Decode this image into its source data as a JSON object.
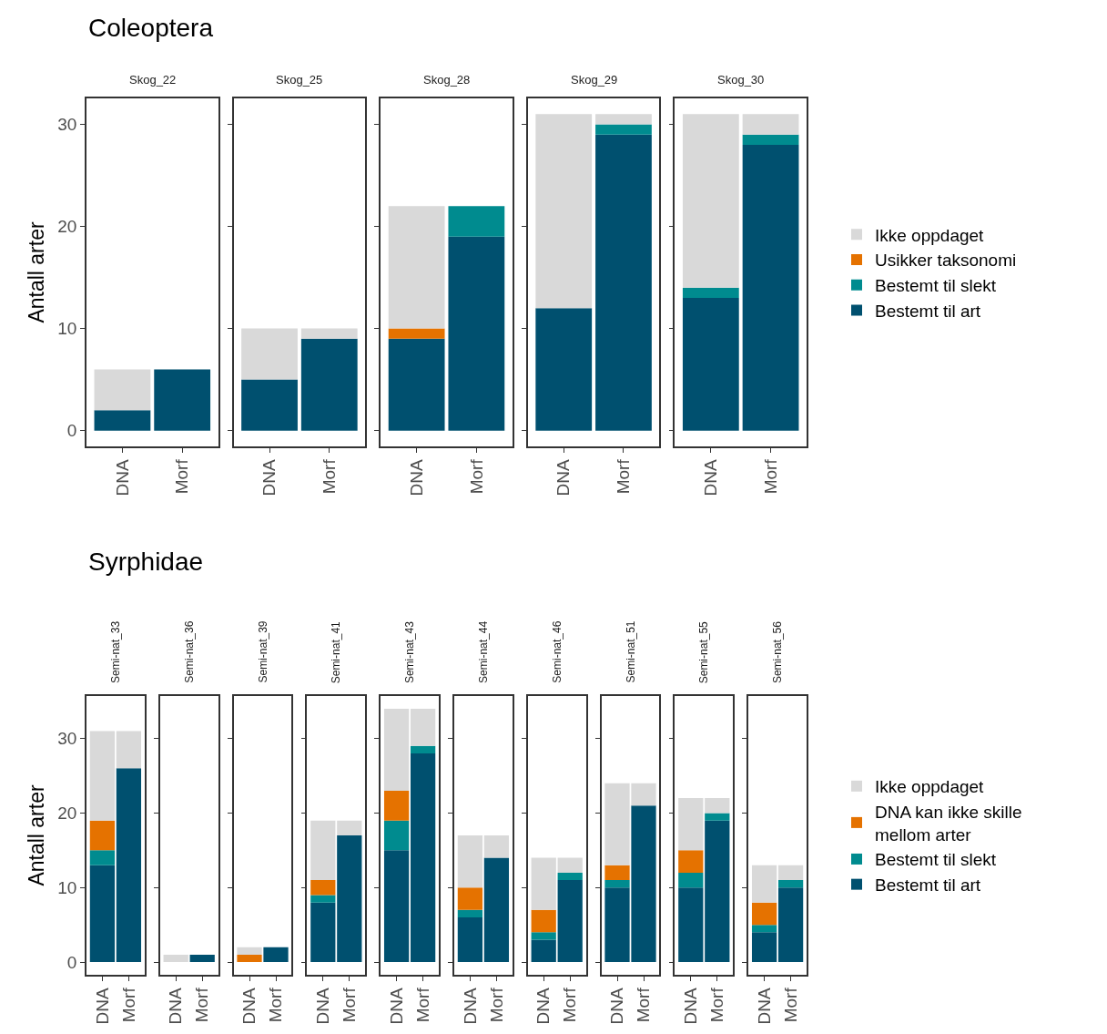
{
  "chart_data": [
    {
      "type": "bar",
      "title": "Coleoptera",
      "subtitle": "Skog_22",
      "ylabel": "Antall arter",
      "categories": [
        "DNA",
        "Morf"
      ],
      "stacked": true,
      "ylim": [
        -1.55,
        32.55
      ],
      "yticks": [
        0,
        10,
        20,
        30
      ],
      "legend": "right",
      "series": [
        {
          "name": "Bestemt til art",
          "color": "#00506f",
          "values": [
            2,
            6
          ]
        },
        {
          "name": "Bestemt til slekt",
          "color": "#008b8f",
          "values": [
            0,
            0
          ]
        },
        {
          "name": "Usikker taksonomi",
          "color": "#e57200",
          "values": [
            0,
            0
          ]
        },
        {
          "name": "Ikke oppdaget",
          "color": "#d9d9d9",
          "values": [
            4,
            0
          ]
        }
      ]
    },
    {
      "type": "bar",
      "subtitle": "Skog_25",
      "categories": [
        "DNA",
        "Morf"
      ],
      "stacked": true,
      "ylim": [
        -1.55,
        32.55
      ],
      "yticks": [
        0,
        10,
        20,
        30
      ],
      "tick_labels": "x",
      "series": [
        {
          "color": "#00506f",
          "values": [
            5,
            9
          ]
        },
        {
          "color": "#008b8f",
          "values": [
            0,
            0
          ]
        },
        {
          "color": "#e57200",
          "values": [
            0,
            0
          ]
        },
        {
          "color": "#d9d9d9",
          "values": [
            5,
            1
          ]
        }
      ]
    },
    {
      "type": "bar",
      "subtitle": "Skog_28",
      "categories": [
        "DNA",
        "Morf"
      ],
      "stacked": true,
      "ylim": [
        -1.55,
        32.55
      ],
      "yticks": [
        0,
        10,
        20,
        30
      ],
      "tick_labels": "x",
      "series": [
        {
          "color": "#00506f",
          "values": [
            9,
            19
          ]
        },
        {
          "color": "#008b8f",
          "values": [
            0,
            3
          ]
        },
        {
          "color": "#e57200",
          "values": [
            1,
            0
          ]
        },
        {
          "color": "#d9d9d9",
          "values": [
            12,
            0
          ]
        }
      ]
    },
    {
      "type": "bar",
      "subtitle": "Skog_29",
      "categories": [
        "DNA",
        "Morf"
      ],
      "stacked": true,
      "ylim": [
        -1.55,
        32.55
      ],
      "yticks": [
        0,
        10,
        20,
        30
      ],
      "tick_labels": "x",
      "series": [
        {
          "color": "#00506f",
          "values": [
            12,
            29
          ]
        },
        {
          "color": "#008b8f",
          "values": [
            0,
            1
          ]
        },
        {
          "color": "#e57200",
          "values": [
            0,
            0
          ]
        },
        {
          "color": "#d9d9d9",
          "values": [
            19,
            1
          ]
        }
      ]
    },
    {
      "type": "bar",
      "subtitle": "Skog_30",
      "categories": [
        "DNA",
        "Morf"
      ],
      "stacked": true,
      "ylim": [
        -1.55,
        32.55
      ],
      "yticks": [
        0,
        10,
        20,
        30
      ],
      "tick_labels": "x",
      "series": [
        {
          "color": "#00506f",
          "values": [
            13,
            28
          ]
        },
        {
          "color": "#008b8f",
          "values": [
            1,
            1
          ]
        },
        {
          "color": "#e57200",
          "values": [
            0,
            0
          ]
        },
        {
          "color": "#d9d9d9",
          "values": [
            17,
            2
          ]
        }
      ]
    },
    {
      "type": "bar",
      "title": "Syrphidae",
      "subtitle": "Semi-nat_33",
      "ylabel": "Antall arter",
      "categories": [
        "DNA",
        "Morf"
      ],
      "stacked": true,
      "ylim": [
        -1.7,
        35.7
      ],
      "yticks": [
        0,
        10,
        20,
        30
      ],
      "legend": "right",
      "series": [
        {
          "name": "Bestemt til art",
          "color": "#00506f",
          "values": [
            13,
            26
          ]
        },
        {
          "name": "Bestemt til slekt",
          "color": "#008b8f",
          "values": [
            2,
            0
          ]
        },
        {
          "name": "DNA kan ikke skille mellom arter",
          "color": "#e57200",
          "values": [
            4,
            0
          ]
        },
        {
          "name": "Ikke oppdaget",
          "color": "#d9d9d9",
          "values": [
            12,
            5
          ]
        }
      ]
    },
    {
      "type": "bar",
      "subtitle": "Semi-nat_36",
      "categories": [
        "DNA",
        "Morf"
      ],
      "stacked": true,
      "ylim": [
        -1.7,
        35.7
      ],
      "yticks": [
        0,
        10,
        20,
        30
      ],
      "tick_labels": "x",
      "series": [
        {
          "color": "#00506f",
          "values": [
            0,
            1
          ]
        },
        {
          "color": "#008b8f",
          "values": [
            0,
            0
          ]
        },
        {
          "color": "#e57200",
          "values": [
            0,
            0
          ]
        },
        {
          "color": "#d9d9d9",
          "values": [
            1,
            0
          ]
        }
      ]
    },
    {
      "type": "bar",
      "subtitle": "Semi-nat_39",
      "categories": [
        "DNA",
        "Morf"
      ],
      "stacked": true,
      "ylim": [
        -1.7,
        35.7
      ],
      "yticks": [
        0,
        10,
        20,
        30
      ],
      "tick_labels": "x",
      "series": [
        {
          "color": "#00506f",
          "values": [
            0,
            2
          ]
        },
        {
          "color": "#008b8f",
          "values": [
            0,
            0
          ]
        },
        {
          "color": "#e57200",
          "values": [
            1,
            0
          ]
        },
        {
          "color": "#d9d9d9",
          "values": [
            1,
            0
          ]
        }
      ]
    },
    {
      "type": "bar",
      "subtitle": "Semi-nat_41",
      "categories": [
        "DNA",
        "Morf"
      ],
      "stacked": true,
      "ylim": [
        -1.7,
        35.7
      ],
      "yticks": [
        0,
        10,
        20,
        30
      ],
      "tick_labels": "x",
      "series": [
        {
          "color": "#00506f",
          "values": [
            8,
            17
          ]
        },
        {
          "color": "#008b8f",
          "values": [
            1,
            0
          ]
        },
        {
          "color": "#e57200",
          "values": [
            2,
            0
          ]
        },
        {
          "color": "#d9d9d9",
          "values": [
            8,
            2
          ]
        }
      ]
    },
    {
      "type": "bar",
      "subtitle": "Semi-nat_43",
      "categories": [
        "DNA",
        "Morf"
      ],
      "stacked": true,
      "ylim": [
        -1.7,
        35.7
      ],
      "yticks": [
        0,
        10,
        20,
        30
      ],
      "tick_labels": "x",
      "series": [
        {
          "color": "#00506f",
          "values": [
            15,
            28
          ]
        },
        {
          "color": "#008b8f",
          "values": [
            4,
            1
          ]
        },
        {
          "color": "#e57200",
          "values": [
            4,
            0
          ]
        },
        {
          "color": "#d9d9d9",
          "values": [
            11,
            5
          ]
        }
      ]
    },
    {
      "type": "bar",
      "subtitle": "Semi-nat_44",
      "categories": [
        "DNA",
        "Morf"
      ],
      "stacked": true,
      "ylim": [
        -1.7,
        35.7
      ],
      "yticks": [
        0,
        10,
        20,
        30
      ],
      "tick_labels": "x",
      "series": [
        {
          "color": "#00506f",
          "values": [
            6,
            14
          ]
        },
        {
          "color": "#008b8f",
          "values": [
            1,
            0
          ]
        },
        {
          "color": "#e57200",
          "values": [
            3,
            0
          ]
        },
        {
          "color": "#d9d9d9",
          "values": [
            7,
            3
          ]
        }
      ]
    },
    {
      "type": "bar",
      "subtitle": "Semi-nat_46",
      "categories": [
        "DNA",
        "Morf"
      ],
      "stacked": true,
      "ylim": [
        -1.7,
        35.7
      ],
      "yticks": [
        0,
        10,
        20,
        30
      ],
      "tick_labels": "x",
      "series": [
        {
          "color": "#00506f",
          "values": [
            3,
            11
          ]
        },
        {
          "color": "#008b8f",
          "values": [
            1,
            1
          ]
        },
        {
          "color": "#e57200",
          "values": [
            3,
            0
          ]
        },
        {
          "color": "#d9d9d9",
          "values": [
            7,
            2
          ]
        }
      ]
    },
    {
      "type": "bar",
      "subtitle": "Semi-nat_51",
      "categories": [
        "DNA",
        "Morf"
      ],
      "stacked": true,
      "ylim": [
        -1.7,
        35.7
      ],
      "yticks": [
        0,
        10,
        20,
        30
      ],
      "tick_labels": "x",
      "series": [
        {
          "color": "#00506f",
          "values": [
            10,
            21
          ]
        },
        {
          "color": "#008b8f",
          "values": [
            1,
            0
          ]
        },
        {
          "color": "#e57200",
          "values": [
            2,
            0
          ]
        },
        {
          "color": "#d9d9d9",
          "values": [
            11,
            3
          ]
        }
      ]
    },
    {
      "type": "bar",
      "subtitle": "Semi-nat_55",
      "categories": [
        "DNA",
        "Morf"
      ],
      "stacked": true,
      "ylim": [
        -1.7,
        35.7
      ],
      "yticks": [
        0,
        10,
        20,
        30
      ],
      "tick_labels": "x",
      "series": [
        {
          "color": "#00506f",
          "values": [
            10,
            19
          ]
        },
        {
          "color": "#008b8f",
          "values": [
            2,
            1
          ]
        },
        {
          "color": "#e57200",
          "values": [
            3,
            0
          ]
        },
        {
          "color": "#d9d9d9",
          "values": [
            7,
            2
          ]
        }
      ]
    },
    {
      "type": "bar",
      "subtitle": "Semi-nat_56",
      "categories": [
        "DNA",
        "Morf"
      ],
      "stacked": true,
      "ylim": [
        -1.7,
        35.7
      ],
      "yticks": [
        0,
        10,
        20,
        30
      ],
      "tick_labels": "x",
      "series": [
        {
          "color": "#00506f",
          "values": [
            4,
            10
          ]
        },
        {
          "color": "#008b8f",
          "values": [
            1,
            1
          ]
        },
        {
          "color": "#e57200",
          "values": [
            3,
            0
          ]
        },
        {
          "color": "#d9d9d9",
          "values": [
            5,
            2
          ]
        }
      ]
    }
  ]
}
